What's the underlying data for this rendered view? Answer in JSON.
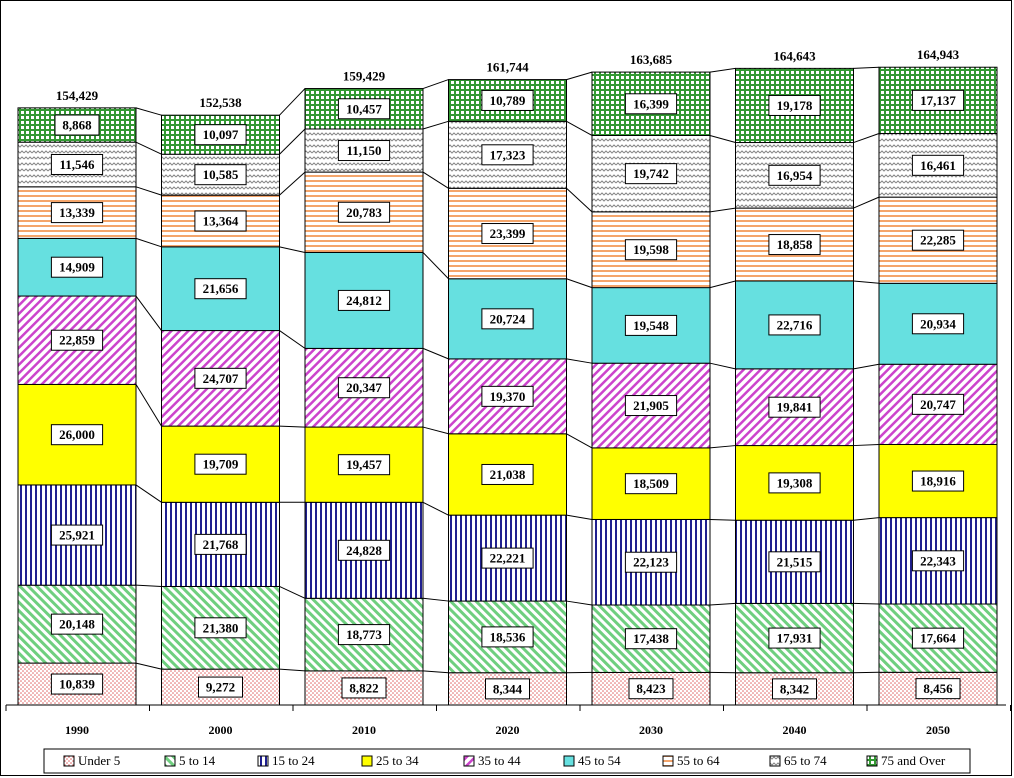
{
  "chart_data": {
    "type": "bar",
    "stacked": true,
    "title": "",
    "xlabel": "",
    "ylabel": "",
    "categories": [
      "1990",
      "2000",
      "2010",
      "2020",
      "2030",
      "2040",
      "2050"
    ],
    "totals": [
      "154,429",
      "152,538",
      "159,429",
      "161,744",
      "163,685",
      "164,643",
      "164,943"
    ],
    "legend_position": "bottom",
    "series": [
      {
        "name": "Under 5",
        "values": [
          10839,
          9272,
          8822,
          8344,
          8423,
          8342,
          8456
        ],
        "color": "#f4cccc",
        "pattern": "dots"
      },
      {
        "name": "5 to 14",
        "values": [
          20148,
          21380,
          18773,
          18536,
          17438,
          17931,
          17664
        ],
        "color": "#c6efce",
        "pattern": "diag"
      },
      {
        "name": "15 to 24",
        "values": [
          25921,
          21768,
          24828,
          22221,
          22123,
          21515,
          22343
        ],
        "color": "#1f1f8f",
        "pattern": "vlines"
      },
      {
        "name": "25 to 34",
        "values": [
          26000,
          19709,
          19457,
          21038,
          18509,
          19308,
          18916
        ],
        "color": "#ffff00",
        "pattern": "solid"
      },
      {
        "name": "35 to 44",
        "values": [
          22859,
          24707,
          20347,
          19370,
          21905,
          19841,
          20747
        ],
        "color": "#cc44cc",
        "pattern": "diagrev"
      },
      {
        "name": "45 to 54",
        "values": [
          14909,
          21656,
          24812,
          20724,
          19548,
          22716,
          20934
        ],
        "color": "#66e0e0",
        "pattern": "solid"
      },
      {
        "name": "55 to 64",
        "values": [
          13339,
          13364,
          20783,
          23399,
          19598,
          18858,
          22285
        ],
        "color": "#f4b183",
        "pattern": "hlines"
      },
      {
        "name": "65 to 74",
        "values": [
          11546,
          10585,
          11150,
          17323,
          19742,
          16954,
          16461
        ],
        "color": "#a6a6a6",
        "pattern": "wave"
      },
      {
        "name": "75 and Over",
        "values": [
          8868,
          10097,
          10457,
          10789,
          16399,
          19178,
          17137
        ],
        "color": "#339933",
        "pattern": "grid"
      }
    ]
  }
}
